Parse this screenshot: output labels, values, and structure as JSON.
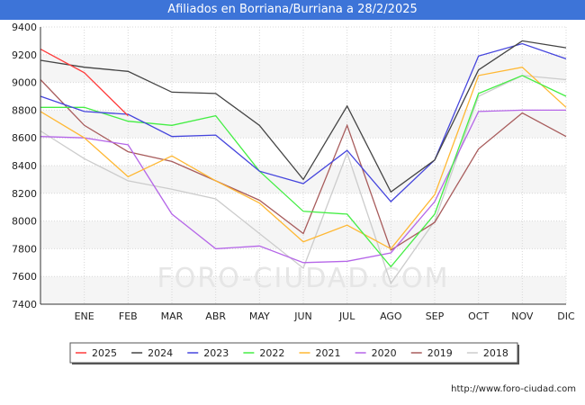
{
  "chart_data": {
    "type": "line",
    "title": "Afiliados en Borriana/Burriana a 28/2/2025",
    "categories": [
      "",
      "ENE",
      "FEB",
      "MAR",
      "ABR",
      "MAY",
      "JUN",
      "JUL",
      "AGO",
      "SEP",
      "OCT",
      "NOV",
      "DIC"
    ],
    "ylim": [
      7400,
      9400
    ],
    "yticks": [
      7400,
      7600,
      7800,
      8000,
      8200,
      8400,
      8600,
      8800,
      9000,
      9200,
      9400
    ],
    "grid": true,
    "legend_position": "bottom",
    "series": [
      {
        "name": "2025",
        "color": "#ff3b3b",
        "values": [
          9240,
          9070,
          8760,
          null,
          null,
          null,
          null,
          null,
          null,
          null,
          null,
          null,
          null
        ]
      },
      {
        "name": "2024",
        "color": "#444444",
        "values": [
          9160,
          9110,
          9080,
          8930,
          8920,
          8690,
          8300,
          8830,
          8210,
          8440,
          9090,
          9300,
          9250
        ]
      },
      {
        "name": "2023",
        "color": "#4545dd",
        "values": [
          8900,
          8790,
          8770,
          8610,
          8620,
          8360,
          8270,
          8510,
          8140,
          8440,
          9190,
          9280,
          9170
        ]
      },
      {
        "name": "2022",
        "color": "#44ee44",
        "values": [
          8820,
          8820,
          8720,
          8690,
          8760,
          8360,
          8070,
          8050,
          7670,
          8050,
          8920,
          9050,
          8900
        ]
      },
      {
        "name": "2021",
        "color": "#ffb833",
        "values": [
          8790,
          8600,
          8320,
          8470,
          8290,
          8130,
          7850,
          7970,
          7800,
          8190,
          9050,
          9110,
          8820
        ]
      },
      {
        "name": "2020",
        "color": "#b566e8",
        "values": [
          8610,
          8600,
          8550,
          8050,
          7800,
          7820,
          7700,
          7710,
          7770,
          8140,
          8790,
          8800,
          8800
        ]
      },
      {
        "name": "2019",
        "color": "#a85c5c",
        "values": [
          9020,
          8690,
          8500,
          8430,
          8290,
          8150,
          7910,
          8690,
          7790,
          7990,
          8520,
          8780,
          8610
        ]
      },
      {
        "name": "2018",
        "color": "#cccccc",
        "values": [
          8650,
          8450,
          8290,
          8230,
          8160,
          7910,
          7660,
          8490,
          7550,
          8000,
          8900,
          9050,
          9020
        ]
      }
    ]
  },
  "source": "http://www.foro-ciudad.com",
  "watermark": "FORO-CIUDAD.COM"
}
